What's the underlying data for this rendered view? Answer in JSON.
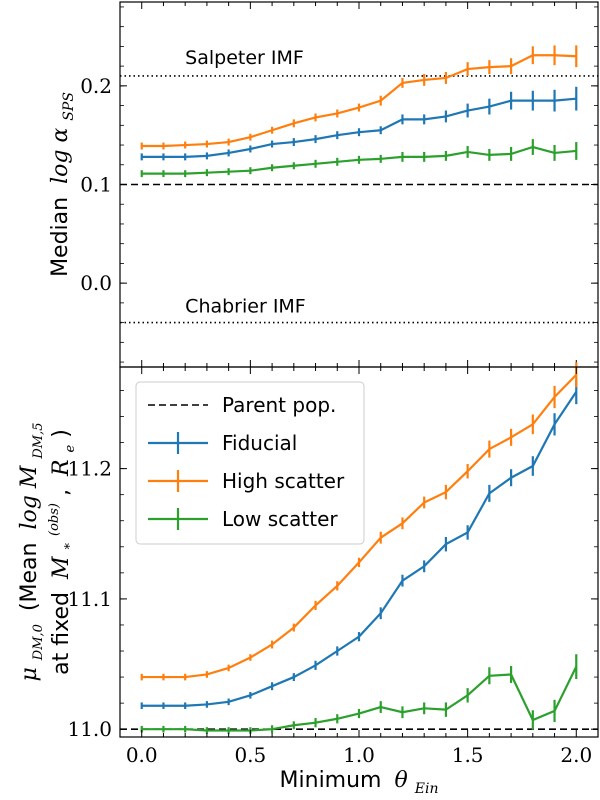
{
  "chart_data": [
    {
      "type": "line",
      "panel": "top",
      "ylabel_prefix": "Median",
      "ylabel_math": "log α",
      "ylabel_sub": "SPS",
      "ylim": [
        -0.085,
        0.285
      ],
      "yticks": [
        0.0,
        0.1,
        0.2
      ],
      "ytick_labels": [
        "0.0",
        "0.1",
        "0.2"
      ],
      "x": [
        0.0,
        0.1,
        0.2,
        0.3,
        0.4,
        0.5,
        0.6,
        0.7,
        0.8,
        0.9,
        1.0,
        1.1,
        1.2,
        1.3,
        1.4,
        1.5,
        1.6,
        1.7,
        1.8,
        1.9,
        2.0
      ],
      "reference_lines": [
        {
          "label": "Salpeter IMF",
          "y": 0.21,
          "style": "dotted"
        },
        {
          "label": "Chabrier IMF",
          "y": -0.04,
          "style": "dotted"
        },
        {
          "label": "",
          "y": 0.1,
          "style": "dashed"
        }
      ],
      "series": [
        {
          "name": "Fiducial",
          "color": "#1f77b4",
          "values": [
            0.128,
            0.128,
            0.128,
            0.129,
            0.132,
            0.136,
            0.141,
            0.143,
            0.146,
            0.15,
            0.153,
            0.155,
            0.166,
            0.166,
            0.169,
            0.175,
            0.179,
            0.185,
            0.185,
            0.185,
            0.187
          ],
          "errors": [
            0.0015,
            0.0015,
            0.0015,
            0.0015,
            0.0015,
            0.0015,
            0.0015,
            0.002,
            0.002,
            0.002,
            0.002,
            0.002,
            0.003,
            0.003,
            0.004,
            0.005,
            0.006,
            0.007,
            0.008,
            0.009,
            0.01
          ]
        },
        {
          "name": "High scatter",
          "color": "#ff7f0e",
          "values": [
            0.139,
            0.139,
            0.14,
            0.141,
            0.143,
            0.148,
            0.155,
            0.162,
            0.168,
            0.172,
            0.178,
            0.185,
            0.203,
            0.206,
            0.208,
            0.217,
            0.219,
            0.22,
            0.231,
            0.231,
            0.23
          ],
          "errors": [
            0.0015,
            0.0015,
            0.0015,
            0.0015,
            0.0015,
            0.0015,
            0.0015,
            0.002,
            0.002,
            0.002,
            0.002,
            0.003,
            0.003,
            0.004,
            0.004,
            0.005,
            0.005,
            0.006,
            0.007,
            0.008,
            0.009
          ]
        },
        {
          "name": "Low scatter",
          "color": "#2ca02c",
          "values": [
            0.111,
            0.111,
            0.111,
            0.112,
            0.113,
            0.114,
            0.117,
            0.119,
            0.121,
            0.123,
            0.125,
            0.126,
            0.128,
            0.128,
            0.129,
            0.133,
            0.13,
            0.131,
            0.138,
            0.132,
            0.134
          ],
          "errors": [
            0.0015,
            0.0015,
            0.0015,
            0.0015,
            0.0015,
            0.0015,
            0.0015,
            0.0015,
            0.002,
            0.002,
            0.002,
            0.002,
            0.003,
            0.003,
            0.003,
            0.004,
            0.004,
            0.005,
            0.006,
            0.006,
            0.007
          ]
        }
      ]
    },
    {
      "type": "line",
      "panel": "bottom",
      "xlabel_prefix": "Minimum",
      "xlabel_math": "θ",
      "xlabel_sub": "Ein",
      "ylabel_line1_math": "μ",
      "ylabel_line1_sub": "DM,0",
      "ylabel_line1_text": "(Mean",
      "ylabel_line1_math2": "log M",
      "ylabel_line1_sub2": "DM,5",
      "ylabel_line2_text": "at fixed",
      "ylabel_line2_math": "M",
      "ylabel_line2_sub": "*",
      "ylabel_line2_sup": "(obs)",
      "ylabel_line2_math2": "R",
      "ylabel_line2_sub2": "e",
      "xlim": [
        -0.1,
        2.1
      ],
      "ylim": [
        10.994,
        11.278
      ],
      "xticks": [
        0.0,
        0.5,
        1.0,
        1.5,
        2.0
      ],
      "xtick_labels": [
        "0.0",
        "0.5",
        "1.0",
        "1.5",
        "2.0"
      ],
      "yticks": [
        11.0,
        11.1,
        11.2
      ],
      "ytick_labels": [
        "11.0",
        "11.1",
        "11.2"
      ],
      "x": [
        0.0,
        0.1,
        0.2,
        0.3,
        0.4,
        0.5,
        0.6,
        0.7,
        0.8,
        0.9,
        1.0,
        1.1,
        1.2,
        1.3,
        1.4,
        1.5,
        1.6,
        1.7,
        1.8,
        1.9,
        2.0
      ],
      "reference_lines": [
        {
          "label": "Parent pop.",
          "y": 11.0,
          "style": "dashed"
        }
      ],
      "legend_position": "upper left",
      "series": [
        {
          "name": "Fiducial",
          "color": "#1f77b4",
          "values": [
            11.018,
            11.018,
            11.018,
            11.019,
            11.021,
            11.026,
            11.033,
            11.04,
            11.049,
            11.06,
            11.071,
            11.089,
            11.114,
            11.125,
            11.142,
            11.151,
            11.181,
            11.193,
            11.202,
            11.234,
            11.259
          ],
          "errors": [
            0.001,
            0.001,
            0.001,
            0.001,
            0.001,
            0.001,
            0.0015,
            0.0015,
            0.002,
            0.002,
            0.002,
            0.003,
            0.003,
            0.003,
            0.004,
            0.004,
            0.005,
            0.005,
            0.006,
            0.007,
            0.008
          ]
        },
        {
          "name": "High scatter",
          "color": "#ff7f0e",
          "values": [
            11.04,
            11.04,
            11.04,
            11.042,
            11.047,
            11.055,
            11.065,
            11.078,
            11.095,
            11.11,
            11.128,
            11.147,
            11.158,
            11.174,
            11.182,
            11.198,
            11.215,
            11.224,
            11.234,
            11.255,
            11.272
          ],
          "errors": [
            0.001,
            0.001,
            0.001,
            0.001,
            0.001,
            0.001,
            0.0015,
            0.0015,
            0.002,
            0.002,
            0.002,
            0.003,
            0.003,
            0.003,
            0.004,
            0.004,
            0.005,
            0.005,
            0.006,
            0.007,
            0.008
          ]
        },
        {
          "name": "Low scatter",
          "color": "#2ca02c",
          "values": [
            11.0,
            11.0,
            11.0,
            10.999,
            10.999,
            10.999,
            11.0,
            11.003,
            11.005,
            11.008,
            11.012,
            11.017,
            11.013,
            11.016,
            11.015,
            11.026,
            11.041,
            11.042,
            11.007,
            11.014,
            11.048
          ],
          "errors": [
            0.001,
            0.001,
            0.001,
            0.001,
            0.001,
            0.001,
            0.0015,
            0.0015,
            0.002,
            0.002,
            0.002,
            0.003,
            0.003,
            0.003,
            0.004,
            0.004,
            0.005,
            0.005,
            0.006,
            0.007,
            0.008
          ]
        }
      ]
    }
  ]
}
